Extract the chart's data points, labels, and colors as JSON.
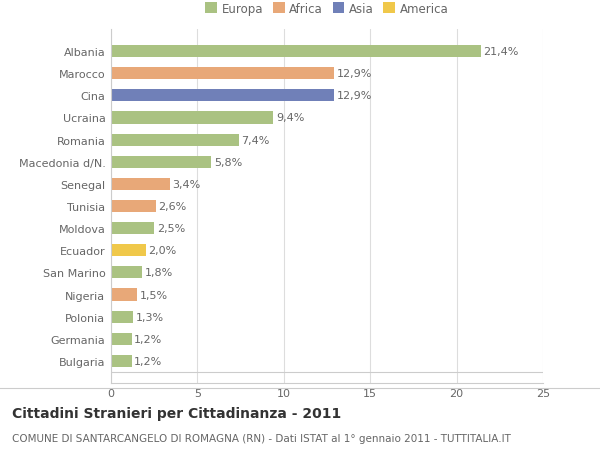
{
  "categories": [
    "Bulgaria",
    "Germania",
    "Polonia",
    "Nigeria",
    "San Marino",
    "Ecuador",
    "Moldova",
    "Tunisia",
    "Senegal",
    "Macedonia d/N.",
    "Romania",
    "Ucraina",
    "Cina",
    "Marocco",
    "Albania"
  ],
  "values": [
    1.2,
    1.2,
    1.3,
    1.5,
    1.8,
    2.0,
    2.5,
    2.6,
    3.4,
    5.8,
    7.4,
    9.4,
    12.9,
    12.9,
    21.4
  ],
  "labels": [
    "1,2%",
    "1,2%",
    "1,3%",
    "1,5%",
    "1,8%",
    "2,0%",
    "2,5%",
    "2,6%",
    "3,4%",
    "5,8%",
    "7,4%",
    "9,4%",
    "12,9%",
    "12,9%",
    "21,4%"
  ],
  "colors": [
    "#aac282",
    "#aac282",
    "#aac282",
    "#e8a878",
    "#aac282",
    "#f0c84a",
    "#aac282",
    "#e8a878",
    "#e8a878",
    "#aac282",
    "#aac282",
    "#aac282",
    "#7080b8",
    "#e8a878",
    "#aac282"
  ],
  "legend_labels": [
    "Europa",
    "Africa",
    "Asia",
    "America"
  ],
  "legend_colors": [
    "#aac282",
    "#e8a878",
    "#7080b8",
    "#f0c84a"
  ],
  "title": "Cittadini Stranieri per Cittadinanza - 2011",
  "subtitle": "COMUNE DI SANTARCANGELO DI ROMAGNA (RN) - Dati ISTAT al 1° gennaio 2011 - TUTTITALIA.IT",
  "xlim": [
    0,
    25
  ],
  "xticks": [
    0,
    5,
    10,
    15,
    20,
    25
  ],
  "bg_color": "#ffffff",
  "plot_bg_color": "#f5f5f5",
  "grid_color": "#dddddd",
  "bar_height": 0.55,
  "title_fontsize": 10,
  "subtitle_fontsize": 7.5,
  "label_fontsize": 8,
  "tick_fontsize": 8,
  "legend_fontsize": 8.5
}
